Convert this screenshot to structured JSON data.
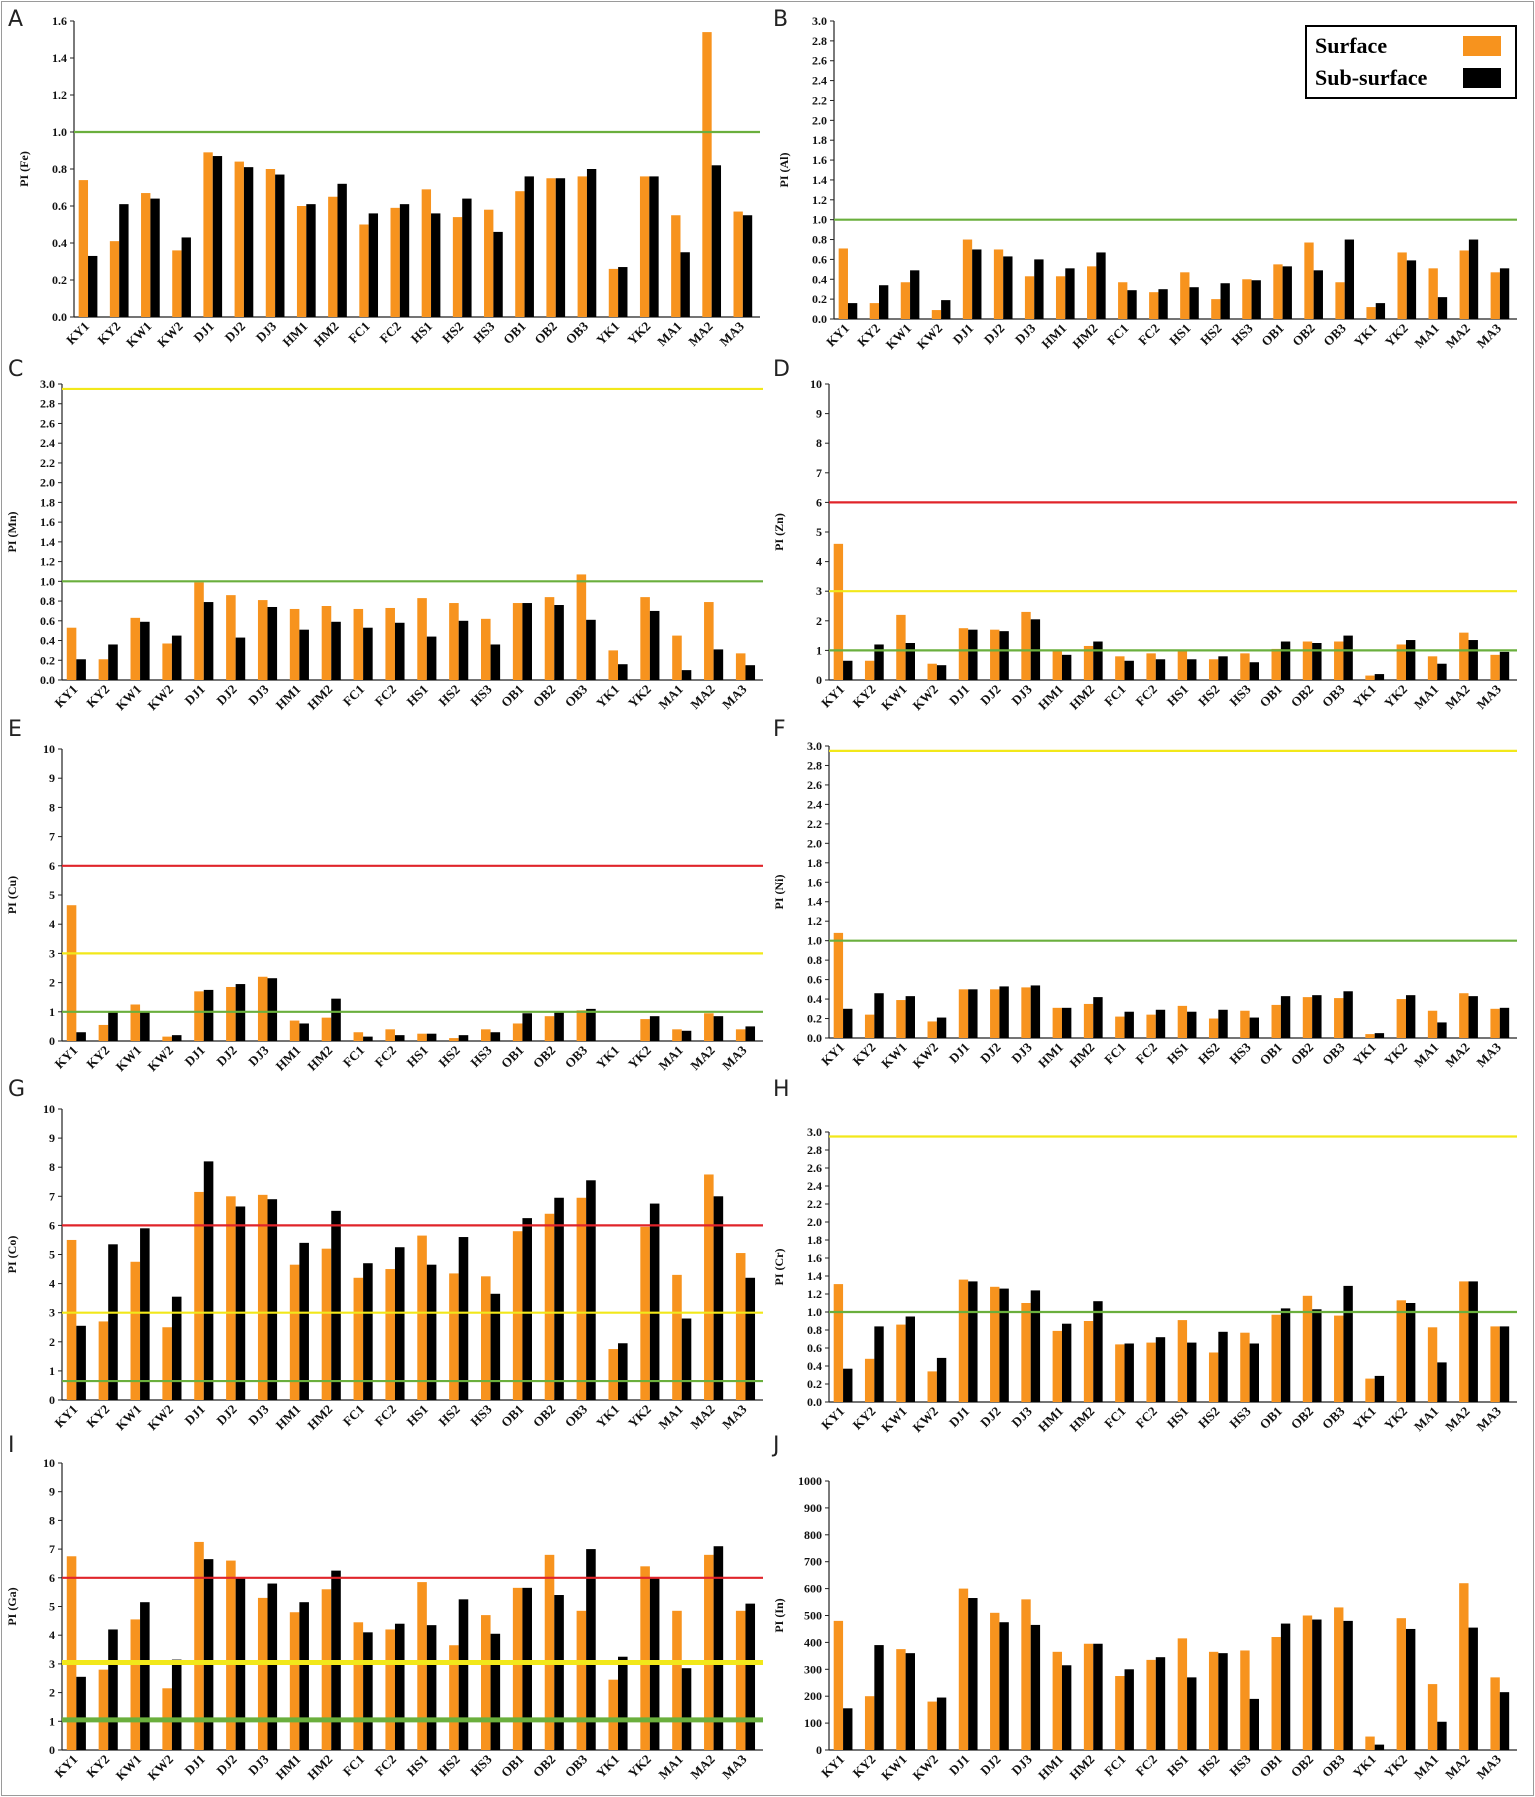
{
  "colors": {
    "surface": "#F7931E",
    "subsurface": "#000000",
    "green": "#6AAF3D",
    "yellow": "#F2E81A",
    "red": "#E0242A"
  },
  "legend": {
    "surface_label": "Surface",
    "subsurface_label": "Sub-surface"
  },
  "chart_data": [
    {
      "panel": "A",
      "type": "bar",
      "ylabel": "PI (Fe)",
      "ylim": [
        0,
        1.6
      ],
      "yticks": [
        0.0,
        0.2,
        0.4,
        0.6,
        0.8,
        1.0,
        1.2,
        1.4,
        1.6
      ],
      "tick_decimals": 1,
      "categories": [
        "KY1",
        "KY2",
        "KW1",
        "KW2",
        "DJ1",
        "DJ2",
        "DJ3",
        "HM1",
        "HM2",
        "FC1",
        "FC2",
        "HS1",
        "HS2",
        "HS3",
        "OB1",
        "OB2",
        "OB3",
        "YK1",
        "YK2",
        "MA1",
        "MA2",
        "MA3"
      ],
      "series": [
        {
          "name": "Surface",
          "values": [
            0.74,
            0.41,
            0.67,
            0.36,
            0.89,
            0.84,
            0.8,
            0.6,
            0.65,
            0.5,
            0.59,
            0.69,
            0.54,
            0.58,
            0.68,
            0.75,
            0.76,
            0.26,
            0.76,
            0.55,
            1.54,
            0.57
          ]
        },
        {
          "name": "Sub-surface",
          "values": [
            0.33,
            0.61,
            0.64,
            0.43,
            0.87,
            0.81,
            0.77,
            0.61,
            0.72,
            0.56,
            0.61,
            0.56,
            0.64,
            0.46,
            0.76,
            0.75,
            0.8,
            0.27,
            0.76,
            0.35,
            0.82,
            0.55
          ]
        }
      ],
      "reference_lines": [
        {
          "y": 1.0,
          "color": "green"
        }
      ]
    },
    {
      "panel": "B",
      "type": "bar",
      "ylabel": "PI (Al)",
      "ylim": [
        0,
        3.0
      ],
      "yticks": [
        0.0,
        0.2,
        0.4,
        0.6,
        0.8,
        1.0,
        1.2,
        1.4,
        1.6,
        1.8,
        2.0,
        2.2,
        2.4,
        2.6,
        2.8,
        3.0
      ],
      "tick_decimals": 1,
      "categories": [
        "KY1",
        "KY2",
        "KW1",
        "KW2",
        "DJ1",
        "DJ2",
        "DJ3",
        "HM1",
        "HM2",
        "FC1",
        "FC2",
        "HS1",
        "HS2",
        "HS3",
        "OB1",
        "OB2",
        "OB3",
        "YK1",
        "YK2",
        "MA1",
        "MA2",
        "MA3"
      ],
      "series": [
        {
          "name": "Surface",
          "values": [
            0.71,
            0.16,
            0.37,
            0.09,
            0.8,
            0.7,
            0.43,
            0.43,
            0.53,
            0.37,
            0.27,
            0.47,
            0.2,
            0.4,
            0.55,
            0.77,
            0.37,
            0.12,
            0.67,
            0.51,
            0.69,
            0.47
          ]
        },
        {
          "name": "Sub-surface",
          "values": [
            0.16,
            0.34,
            0.49,
            0.19,
            0.7,
            0.63,
            0.6,
            0.51,
            0.67,
            0.29,
            0.3,
            0.32,
            0.36,
            0.39,
            0.53,
            0.49,
            0.8,
            0.16,
            0.59,
            0.22,
            0.8,
            0.51
          ]
        }
      ],
      "reference_lines": [
        {
          "y": 1.0,
          "color": "green"
        }
      ]
    },
    {
      "panel": "C",
      "type": "bar",
      "ylabel": "PI (Mn)",
      "ylim": [
        0,
        3.0
      ],
      "yticks": [
        0.0,
        0.2,
        0.4,
        0.6,
        0.8,
        1.0,
        1.2,
        1.4,
        1.6,
        1.8,
        2.0,
        2.2,
        2.4,
        2.6,
        2.8,
        3.0
      ],
      "tick_decimals": 1,
      "categories": [
        "KY1",
        "KY2",
        "KW1",
        "KW2",
        "DJ1",
        "DJ2",
        "DJ3",
        "HM1",
        "HM2",
        "FC1",
        "FC2",
        "HS1",
        "HS2",
        "HS3",
        "OB1",
        "OB2",
        "OB3",
        "YK1",
        "YK2",
        "MA1",
        "MA2",
        "MA3"
      ],
      "series": [
        {
          "name": "Surface",
          "values": [
            0.53,
            0.21,
            0.63,
            0.37,
            0.99,
            0.86,
            0.81,
            0.72,
            0.75,
            0.72,
            0.73,
            0.83,
            0.78,
            0.62,
            0.78,
            0.84,
            1.07,
            0.3,
            0.84,
            0.45,
            0.79,
            0.27
          ]
        },
        {
          "name": "Sub-surface",
          "values": [
            0.21,
            0.36,
            0.59,
            0.45,
            0.79,
            0.43,
            0.74,
            0.51,
            0.59,
            0.53,
            0.58,
            0.44,
            0.6,
            0.36,
            0.78,
            0.76,
            0.61,
            0.16,
            0.7,
            0.1,
            0.31,
            0.15
          ]
        }
      ],
      "reference_lines": [
        {
          "y": 1.0,
          "color": "green"
        },
        {
          "y": 2.95,
          "color": "yellow"
        }
      ]
    },
    {
      "panel": "D",
      "type": "bar",
      "ylabel": "PI (Zn)",
      "ylim": [
        0,
        10
      ],
      "yticks": [
        0,
        1,
        2,
        3,
        4,
        5,
        6,
        7,
        8,
        9,
        10
      ],
      "tick_decimals": 0,
      "categories": [
        "KY1",
        "KY2",
        "KW1",
        "KW2",
        "DJ1",
        "DJ2",
        "DJ3",
        "HM1",
        "HM2",
        "FC1",
        "FC2",
        "HS1",
        "HS2",
        "HS3",
        "OB1",
        "OB2",
        "OB3",
        "YK1",
        "YK2",
        "MA1",
        "MA2",
        "MA3"
      ],
      "series": [
        {
          "name": "Surface",
          "values": [
            4.6,
            0.65,
            2.2,
            0.55,
            1.75,
            1.7,
            2.3,
            1.0,
            1.15,
            0.8,
            0.9,
            1.0,
            0.7,
            0.9,
            1.05,
            1.3,
            1.3,
            0.15,
            1.2,
            0.8,
            1.6,
            0.85
          ]
        },
        {
          "name": "Sub-surface",
          "values": [
            0.65,
            1.2,
            1.25,
            0.5,
            1.7,
            1.65,
            2.05,
            0.85,
            1.3,
            0.65,
            0.7,
            0.7,
            0.8,
            0.6,
            1.3,
            1.25,
            1.5,
            0.2,
            1.35,
            0.55,
            1.35,
            0.95
          ]
        }
      ],
      "reference_lines": [
        {
          "y": 1.0,
          "color": "green"
        },
        {
          "y": 3.0,
          "color": "yellow"
        },
        {
          "y": 6.0,
          "color": "red"
        }
      ]
    },
    {
      "panel": "E",
      "type": "bar",
      "ylabel": "PI (Cu)",
      "ylim": [
        0,
        10
      ],
      "yticks": [
        0,
        1,
        2,
        3,
        4,
        5,
        6,
        7,
        8,
        9,
        10
      ],
      "tick_decimals": 0,
      "categories": [
        "KY1",
        "KY2",
        "KW1",
        "KW2",
        "DJ1",
        "DJ2",
        "DJ3",
        "HM1",
        "HM2",
        "FC1",
        "FC2",
        "HS1",
        "HS2",
        "HS3",
        "OB1",
        "OB2",
        "OB3",
        "YK1",
        "YK2",
        "MA1",
        "MA2",
        "MA3"
      ],
      "series": [
        {
          "name": "Surface",
          "values": [
            4.65,
            0.55,
            1.25,
            0.15,
            1.7,
            1.85,
            2.2,
            0.7,
            0.8,
            0.3,
            0.4,
            0.25,
            0.1,
            0.4,
            0.6,
            0.85,
            1.05,
            0.0,
            0.75,
            0.4,
            0.95,
            0.4
          ]
        },
        {
          "name": "Sub-surface",
          "values": [
            0.3,
            1.0,
            1.0,
            0.2,
            1.75,
            1.95,
            2.15,
            0.6,
            1.45,
            0.15,
            0.2,
            0.25,
            0.2,
            0.3,
            0.95,
            1.0,
            1.1,
            0.0,
            0.85,
            0.35,
            0.85,
            0.5
          ]
        }
      ],
      "reference_lines": [
        {
          "y": 1.0,
          "color": "green"
        },
        {
          "y": 3.0,
          "color": "yellow"
        },
        {
          "y": 6.0,
          "color": "red"
        }
      ]
    },
    {
      "panel": "F",
      "type": "bar",
      "ylabel": "PI (Ni)",
      "ylim": [
        0,
        3.0
      ],
      "yticks": [
        0.0,
        0.2,
        0.4,
        0.6,
        0.8,
        1.0,
        1.2,
        1.4,
        1.6,
        1.8,
        2.0,
        2.2,
        2.4,
        2.6,
        2.8,
        3.0
      ],
      "tick_decimals": 1,
      "categories": [
        "KY1",
        "KY2",
        "KW1",
        "KW2",
        "DJ1",
        "DJ2",
        "DJ3",
        "HM1",
        "HM2",
        "FC1",
        "FC2",
        "HS1",
        "HS2",
        "HS3",
        "OB1",
        "OB2",
        "OB3",
        "YK1",
        "YK2",
        "MA1",
        "MA2",
        "MA3"
      ],
      "series": [
        {
          "name": "Surface",
          "values": [
            1.08,
            0.24,
            0.39,
            0.17,
            0.5,
            0.5,
            0.52,
            0.31,
            0.35,
            0.22,
            0.24,
            0.33,
            0.2,
            0.28,
            0.34,
            0.42,
            0.41,
            0.04,
            0.4,
            0.28,
            0.46,
            0.3
          ]
        },
        {
          "name": "Sub-surface",
          "values": [
            0.3,
            0.46,
            0.43,
            0.21,
            0.5,
            0.53,
            0.54,
            0.31,
            0.42,
            0.27,
            0.29,
            0.27,
            0.29,
            0.21,
            0.43,
            0.44,
            0.48,
            0.05,
            0.44,
            0.16,
            0.43,
            0.31
          ]
        }
      ],
      "reference_lines": [
        {
          "y": 1.0,
          "color": "green"
        },
        {
          "y": 2.95,
          "color": "yellow"
        }
      ]
    },
    {
      "panel": "G",
      "type": "bar",
      "ylabel": "PI (Co)",
      "ylim": [
        0,
        10
      ],
      "yticks": [
        0,
        1,
        2,
        3,
        4,
        5,
        6,
        7,
        8,
        9,
        10
      ],
      "tick_decimals": 0,
      "categories": [
        "KY1",
        "KY2",
        "KW1",
        "KW2",
        "DJ1",
        "DJ2",
        "DJ3",
        "HM1",
        "HM2",
        "FC1",
        "FC2",
        "HS1",
        "HS2",
        "HS3",
        "OB1",
        "OB2",
        "OB3",
        "YK1",
        "YK2",
        "MA1",
        "MA2",
        "MA3"
      ],
      "series": [
        {
          "name": "Surface",
          "values": [
            5.5,
            2.7,
            4.75,
            2.5,
            7.15,
            7.0,
            7.05,
            4.65,
            5.2,
            4.2,
            4.5,
            5.65,
            4.35,
            4.25,
            5.8,
            6.4,
            6.95,
            1.75,
            5.95,
            4.3,
            7.75,
            5.05
          ]
        },
        {
          "name": "Sub-surface",
          "values": [
            2.55,
            5.35,
            5.9,
            3.55,
            8.2,
            6.65,
            6.9,
            5.4,
            6.5,
            4.7,
            5.25,
            4.65,
            5.6,
            3.65,
            6.25,
            6.95,
            7.55,
            1.95,
            6.75,
            2.8,
            7.0,
            4.2
          ]
        }
      ],
      "reference_lines": [
        {
          "y": 0.65,
          "color": "green"
        },
        {
          "y": 3.0,
          "color": "yellow"
        },
        {
          "y": 6.0,
          "color": "red"
        }
      ]
    },
    {
      "panel": "H",
      "type": "bar",
      "ylabel": "PI (Cr)",
      "ylim": [
        0,
        3.0
      ],
      "yticks": [
        0.0,
        0.2,
        0.4,
        0.6,
        0.8,
        1.0,
        1.2,
        1.4,
        1.6,
        1.8,
        2.0,
        2.2,
        2.4,
        2.6,
        2.8,
        3.0
      ],
      "tick_decimals": 1,
      "categories": [
        "KY1",
        "KY2",
        "KW1",
        "KW2",
        "DJ1",
        "DJ2",
        "DJ3",
        "HM1",
        "HM2",
        "FC1",
        "FC2",
        "HS1",
        "HS2",
        "HS3",
        "OB1",
        "OB2",
        "OB3",
        "YK1",
        "YK2",
        "MA1",
        "MA2",
        "MA3"
      ],
      "series": [
        {
          "name": "Surface",
          "values": [
            1.31,
            0.48,
            0.86,
            0.34,
            1.36,
            1.28,
            1.1,
            0.79,
            0.9,
            0.64,
            0.66,
            0.91,
            0.55,
            0.77,
            0.97,
            1.18,
            0.96,
            0.26,
            1.13,
            0.83,
            1.34,
            0.84
          ]
        },
        {
          "name": "Sub-surface",
          "values": [
            0.37,
            0.84,
            0.95,
            0.49,
            1.34,
            1.26,
            1.24,
            0.87,
            1.12,
            0.65,
            0.72,
            0.66,
            0.78,
            0.65,
            1.04,
            1.03,
            1.29,
            0.29,
            1.1,
            0.44,
            1.34,
            0.84
          ]
        }
      ],
      "reference_lines": [
        {
          "y": 1.0,
          "color": "green"
        },
        {
          "y": 2.95,
          "color": "yellow"
        }
      ]
    },
    {
      "panel": "I",
      "type": "bar",
      "ylabel": "PI (Ga)",
      "ylim": [
        0,
        10
      ],
      "yticks": [
        0,
        1,
        2,
        3,
        4,
        5,
        6,
        7,
        8,
        9,
        10
      ],
      "tick_decimals": 0,
      "categories": [
        "KY1",
        "KY2",
        "KW1",
        "KW2",
        "DJ1",
        "DJ2",
        "DJ3",
        "HM1",
        "HM2",
        "FC1",
        "FC2",
        "HS1",
        "HS2",
        "HS3",
        "OB1",
        "OB2",
        "OB3",
        "YK1",
        "YK2",
        "MA1",
        "MA2",
        "MA3"
      ],
      "series": [
        {
          "name": "Surface",
          "values": [
            6.75,
            2.8,
            4.55,
            2.15,
            7.25,
            6.6,
            5.3,
            4.8,
            5.6,
            4.45,
            4.2,
            5.85,
            3.65,
            4.7,
            5.65,
            6.8,
            4.85,
            2.45,
            6.4,
            4.85,
            6.8,
            4.85
          ]
        },
        {
          "name": "Sub-surface",
          "values": [
            2.55,
            4.2,
            5.15,
            3.15,
            6.65,
            6.0,
            5.8,
            5.15,
            6.25,
            4.1,
            4.4,
            4.35,
            5.25,
            4.05,
            5.65,
            5.4,
            7.0,
            3.25,
            6.0,
            2.85,
            7.1,
            5.1
          ]
        }
      ],
      "reference_lines": [
        {
          "y": 1.05,
          "color": "green"
        },
        {
          "y": 3.05,
          "color": "yellow"
        },
        {
          "y": 6.0,
          "color": "red"
        }
      ]
    },
    {
      "panel": "J",
      "type": "bar",
      "ylabel": "PI (In)",
      "ylim": [
        0,
        1000
      ],
      "yticks": [
        0,
        100,
        200,
        300,
        400,
        500,
        600,
        700,
        800,
        900,
        1000
      ],
      "tick_decimals": 0,
      "categories": [
        "KY1",
        "KY2",
        "KW1",
        "KW2",
        "DJ1",
        "DJ2",
        "DJ3",
        "HM1",
        "HM2",
        "FC1",
        "FC2",
        "HS1",
        "HS2",
        "HS3",
        "OB1",
        "OB2",
        "OB3",
        "YK1",
        "YK2",
        "MA1",
        "MA2",
        "MA3"
      ],
      "series": [
        {
          "name": "Surface",
          "values": [
            480,
            200,
            375,
            180,
            600,
            510,
            560,
            365,
            395,
            275,
            335,
            415,
            365,
            370,
            420,
            500,
            530,
            50,
            490,
            245,
            620,
            270
          ]
        },
        {
          "name": "Sub-surface",
          "values": [
            155,
            390,
            360,
            195,
            565,
            475,
            465,
            315,
            395,
            300,
            345,
            270,
            360,
            190,
            470,
            485,
            480,
            20,
            450,
            105,
            455,
            215
          ]
        }
      ],
      "reference_lines": []
    }
  ]
}
